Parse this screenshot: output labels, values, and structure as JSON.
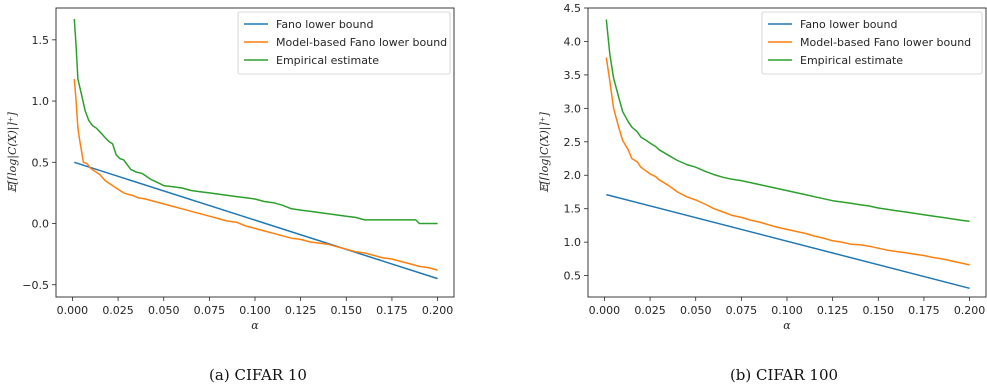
{
  "chart_data": [
    {
      "type": "line",
      "caption": "(a) CIFAR 10",
      "xlabel": "α",
      "ylabel": "𝔼[⌈log|C(X)|⌉⁺]",
      "xlim": [
        -0.009,
        0.209
      ],
      "ylim": [
        -0.6,
        1.76
      ],
      "xticks": [
        0.0,
        0.025,
        0.05,
        0.075,
        0.1,
        0.125,
        0.15,
        0.175,
        0.2
      ],
      "xtick_labels": [
        "0.000",
        "0.025",
        "0.050",
        "0.075",
        "0.100",
        "0.125",
        "0.150",
        "0.175",
        "0.200"
      ],
      "yticks": [
        -0.5,
        0.0,
        0.5,
        1.0,
        1.5
      ],
      "ytick_labels": [
        "−0.5",
        "0.0",
        "0.5",
        "1.0",
        "1.5"
      ],
      "legend_position": "top-right",
      "series": [
        {
          "name": "Fano lower bound",
          "color": "#1f77b4",
          "x": [
            0.001,
            0.2
          ],
          "y": [
            0.5,
            -0.45
          ]
        },
        {
          "name": "Model-based Fano lower bound",
          "color": "#ff7f0e",
          "x": [
            0.001,
            0.002,
            0.003,
            0.004,
            0.006,
            0.008,
            0.01,
            0.012,
            0.015,
            0.018,
            0.02,
            0.022,
            0.025,
            0.028,
            0.03,
            0.033,
            0.036,
            0.04,
            0.045,
            0.05,
            0.055,
            0.06,
            0.065,
            0.07,
            0.075,
            0.08,
            0.085,
            0.09,
            0.095,
            0.1,
            0.105,
            0.11,
            0.115,
            0.12,
            0.125,
            0.13,
            0.135,
            0.14,
            0.145,
            0.15,
            0.155,
            0.16,
            0.165,
            0.17,
            0.175,
            0.18,
            0.185,
            0.19,
            0.195,
            0.2
          ],
          "y": [
            1.18,
            1.0,
            0.78,
            0.68,
            0.5,
            0.49,
            0.45,
            0.43,
            0.4,
            0.35,
            0.33,
            0.31,
            0.28,
            0.25,
            0.24,
            0.23,
            0.21,
            0.2,
            0.18,
            0.16,
            0.14,
            0.12,
            0.1,
            0.08,
            0.06,
            0.04,
            0.02,
            0.01,
            -0.02,
            -0.04,
            -0.06,
            -0.08,
            -0.1,
            -0.12,
            -0.13,
            -0.15,
            -0.16,
            -0.17,
            -0.19,
            -0.21,
            -0.23,
            -0.24,
            -0.26,
            -0.28,
            -0.29,
            -0.31,
            -0.33,
            -0.35,
            -0.36,
            -0.38
          ]
        },
        {
          "name": "Empirical estimate",
          "color": "#2ca02c",
          "x": [
            0.001,
            0.002,
            0.003,
            0.005,
            0.007,
            0.009,
            0.011,
            0.013,
            0.015,
            0.018,
            0.02,
            0.022,
            0.024,
            0.026,
            0.028,
            0.03,
            0.032,
            0.035,
            0.038,
            0.04,
            0.043,
            0.046,
            0.05,
            0.055,
            0.06,
            0.065,
            0.07,
            0.075,
            0.08,
            0.085,
            0.09,
            0.095,
            0.1,
            0.105,
            0.11,
            0.115,
            0.12,
            0.125,
            0.13,
            0.135,
            0.14,
            0.145,
            0.15,
            0.155,
            0.16,
            0.165,
            0.17,
            0.175,
            0.18,
            0.185,
            0.188,
            0.19,
            0.195,
            0.2
          ],
          "y": [
            1.67,
            1.45,
            1.18,
            1.05,
            0.92,
            0.84,
            0.8,
            0.78,
            0.75,
            0.7,
            0.67,
            0.65,
            0.56,
            0.53,
            0.52,
            0.48,
            0.44,
            0.42,
            0.41,
            0.39,
            0.36,
            0.34,
            0.31,
            0.3,
            0.29,
            0.27,
            0.26,
            0.25,
            0.24,
            0.23,
            0.22,
            0.21,
            0.2,
            0.18,
            0.17,
            0.15,
            0.12,
            0.11,
            0.1,
            0.09,
            0.08,
            0.07,
            0.06,
            0.05,
            0.03,
            0.03,
            0.03,
            0.03,
            0.03,
            0.03,
            0.03,
            0.0,
            0.0,
            0.0
          ]
        }
      ]
    },
    {
      "type": "line",
      "caption": "(b) CIFAR 100",
      "xlabel": "α",
      "ylabel": "𝔼[⌈log|C(X)|⌉⁺]",
      "xlim": [
        -0.009,
        0.209
      ],
      "ylim": [
        0.18,
        4.5
      ],
      "xticks": [
        0.0,
        0.025,
        0.05,
        0.075,
        0.1,
        0.125,
        0.15,
        0.175,
        0.2
      ],
      "xtick_labels": [
        "0.000",
        "0.025",
        "0.050",
        "0.075",
        "0.100",
        "0.125",
        "0.150",
        "0.175",
        "0.200"
      ],
      "yticks": [
        0.5,
        1.0,
        1.5,
        2.0,
        2.5,
        3.0,
        3.5,
        4.0,
        4.5
      ],
      "ytick_labels": [
        "0.5",
        "1.0",
        "1.5",
        "2.0",
        "2.5",
        "3.0",
        "3.5",
        "4.0",
        "4.5"
      ],
      "legend_position": "top-right",
      "series": [
        {
          "name": "Fano lower bound",
          "color": "#1f77b4",
          "x": [
            0.001,
            0.2
          ],
          "y": [
            1.71,
            0.31
          ]
        },
        {
          "name": "Model-based Fano lower bound",
          "color": "#ff7f0e",
          "x": [
            0.001,
            0.003,
            0.005,
            0.008,
            0.01,
            0.013,
            0.015,
            0.018,
            0.02,
            0.023,
            0.025,
            0.028,
            0.03,
            0.035,
            0.04,
            0.045,
            0.05,
            0.055,
            0.06,
            0.065,
            0.07,
            0.075,
            0.08,
            0.085,
            0.09,
            0.095,
            0.1,
            0.105,
            0.11,
            0.115,
            0.12,
            0.125,
            0.13,
            0.135,
            0.14,
            0.145,
            0.15,
            0.155,
            0.16,
            0.165,
            0.17,
            0.175,
            0.18,
            0.185,
            0.19,
            0.195,
            0.2
          ],
          "y": [
            3.76,
            3.4,
            3.0,
            2.7,
            2.52,
            2.38,
            2.25,
            2.2,
            2.12,
            2.06,
            2.02,
            1.98,
            1.93,
            1.85,
            1.75,
            1.68,
            1.63,
            1.57,
            1.5,
            1.45,
            1.4,
            1.37,
            1.33,
            1.3,
            1.26,
            1.22,
            1.19,
            1.16,
            1.13,
            1.09,
            1.06,
            1.02,
            1.0,
            0.97,
            0.96,
            0.94,
            0.91,
            0.88,
            0.86,
            0.84,
            0.82,
            0.8,
            0.77,
            0.75,
            0.72,
            0.69,
            0.66
          ]
        },
        {
          "name": "Empirical estimate",
          "color": "#2ca02c",
          "x": [
            0.001,
            0.003,
            0.005,
            0.008,
            0.01,
            0.013,
            0.015,
            0.018,
            0.02,
            0.023,
            0.025,
            0.028,
            0.03,
            0.035,
            0.04,
            0.045,
            0.05,
            0.055,
            0.06,
            0.065,
            0.07,
            0.075,
            0.08,
            0.085,
            0.09,
            0.095,
            0.1,
            0.105,
            0.11,
            0.115,
            0.12,
            0.125,
            0.13,
            0.135,
            0.14,
            0.145,
            0.15,
            0.155,
            0.16,
            0.165,
            0.17,
            0.175,
            0.18,
            0.185,
            0.19,
            0.195,
            0.2
          ],
          "y": [
            4.33,
            3.8,
            3.45,
            3.15,
            2.95,
            2.8,
            2.72,
            2.65,
            2.57,
            2.52,
            2.48,
            2.43,
            2.38,
            2.3,
            2.22,
            2.16,
            2.12,
            2.06,
            2.01,
            1.97,
            1.94,
            1.92,
            1.89,
            1.86,
            1.83,
            1.8,
            1.77,
            1.74,
            1.71,
            1.68,
            1.65,
            1.62,
            1.6,
            1.58,
            1.56,
            1.54,
            1.51,
            1.49,
            1.47,
            1.45,
            1.43,
            1.41,
            1.39,
            1.37,
            1.35,
            1.33,
            1.31
          ]
        }
      ]
    }
  ]
}
